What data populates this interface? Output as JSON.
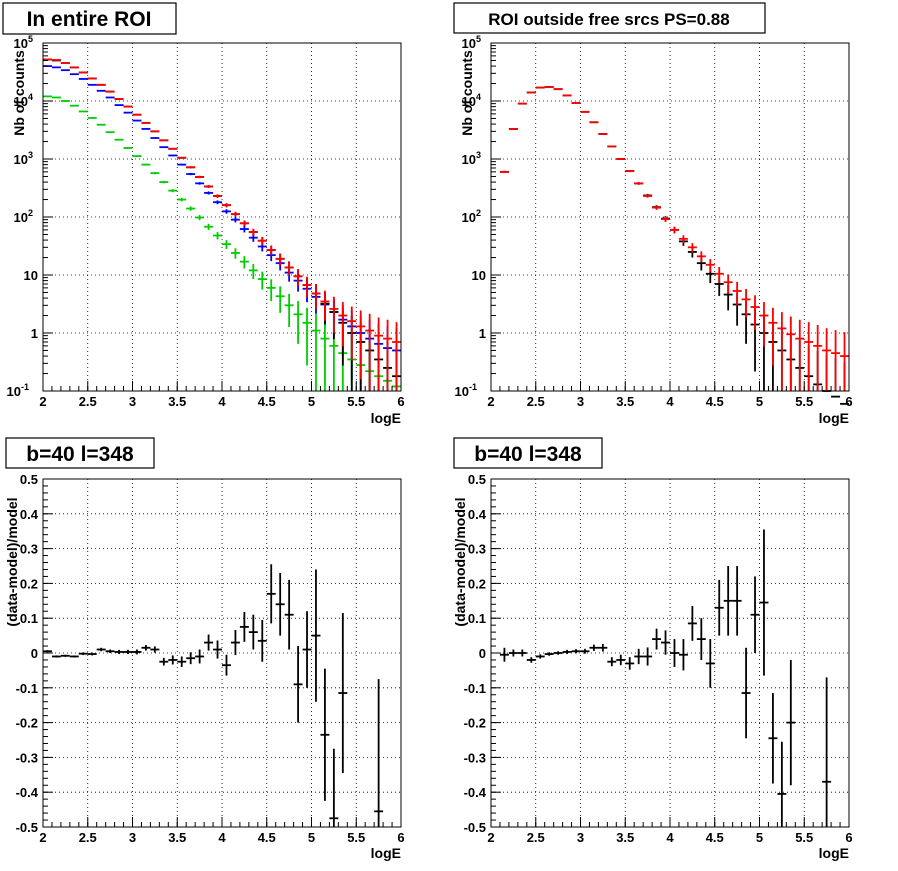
{
  "colors": {
    "data": "#000000",
    "model_total": "#ff0000",
    "model_blue": "#0000ff",
    "model_green": "#00cc00",
    "grid": "#000000",
    "frame": "#000000"
  },
  "chart_data": [
    {
      "type": "scatter",
      "title": "In entire ROI",
      "xlabel": "logE",
      "ylabel": "Nb of counts",
      "xlim": [
        2,
        6
      ],
      "ylim": [
        0.1,
        100000
      ],
      "yscale": "log",
      "grid": true,
      "x_ticks": [
        "2",
        "2.5",
        "3",
        "3.5",
        "4",
        "4.5",
        "5",
        "5.5",
        "6"
      ],
      "y_ticks": [
        "10^-1",
        "1",
        "10",
        "10^2",
        "10^3",
        "10^4",
        "10^5"
      ],
      "bin_width": 0.1,
      "series": [
        {
          "color": "#0000ff",
          "x": [
            2.05,
            2.15,
            2.25,
            2.35,
            2.45,
            2.55,
            2.65,
            2.75,
            2.85,
            2.95,
            3.05,
            3.15,
            3.25,
            3.35,
            3.45,
            3.55,
            3.65,
            3.75,
            3.85,
            3.95,
            4.05,
            4.15,
            4.25,
            4.35,
            4.45,
            4.55,
            4.65,
            4.75,
            4.85,
            4.95,
            5.05,
            5.15,
            5.25,
            5.35,
            5.45,
            5.55,
            5.65,
            5.75,
            5.85,
            5.95
          ],
          "y": [
            40000,
            38000,
            34000,
            29000,
            24000,
            19000,
            15000,
            11500,
            8500,
            6300,
            4600,
            3300,
            2300,
            1600,
            1150,
            800,
            550,
            380,
            260,
            180,
            125,
            90,
            62,
            44,
            31,
            22,
            16,
            11,
            8,
            5.8,
            4.2,
            3.1,
            2.3,
            1.7,
            1.3,
            1.0,
            0.8,
            0.65,
            0.55,
            0.5
          ]
        },
        {
          "color": "#00cc00",
          "x": [
            2.05,
            2.15,
            2.25,
            2.35,
            2.45,
            2.55,
            2.65,
            2.75,
            2.85,
            2.95,
            3.05,
            3.15,
            3.25,
            3.35,
            3.45,
            3.55,
            3.65,
            3.75,
            3.85,
            3.95,
            4.05,
            4.15,
            4.25,
            4.35,
            4.45,
            4.55,
            4.65,
            4.75,
            4.85,
            4.95,
            5.05,
            5.15,
            5.25,
            5.35,
            5.45,
            5.55,
            5.65,
            5.75,
            5.85,
            5.95
          ],
          "y": [
            12000,
            11500,
            10000,
            8300,
            6600,
            5100,
            3900,
            2900,
            2150,
            1550,
            1120,
            800,
            570,
            400,
            285,
            200,
            140,
            98,
            68,
            48,
            34,
            24,
            17,
            12,
            8.5,
            6,
            4.3,
            3.0,
            2.1,
            1.5,
            1.1,
            0.8,
            0.6,
            0.45,
            0.35,
            0.28,
            0.22,
            0.18,
            0.15,
            0.12
          ]
        },
        {
          "color": "#000000",
          "x": [
            2.05,
            2.15,
            2.25,
            2.35,
            2.45,
            2.55,
            2.65,
            2.75,
            2.85,
            2.95,
            3.05,
            3.15,
            3.25,
            3.35,
            3.45,
            3.55,
            3.65,
            3.75,
            3.85,
            3.95,
            4.05,
            4.15,
            4.25,
            4.35,
            4.45,
            4.55,
            4.65,
            4.75,
            4.85,
            4.95,
            5.05,
            5.15,
            5.25,
            5.35,
            5.45,
            5.55,
            5.65,
            5.75,
            5.85,
            5.95
          ],
          "y": [
            52000,
            50000,
            45000,
            38000,
            31000,
            24500,
            19000,
            14500,
            10800,
            8000,
            5800,
            4200,
            3000,
            2100,
            1500,
            1050,
            720,
            490,
            335,
            230,
            160,
            112,
            78,
            55,
            39,
            27,
            19,
            13.5,
            9.5,
            6.7,
            4.8,
            3.2,
            2.3,
            1.5,
            1.0,
            0.7,
            0.5,
            0.35,
            0.25,
            0.18
          ]
        },
        {
          "color": "#ff0000",
          "x": [
            2.05,
            2.15,
            2.25,
            2.35,
            2.45,
            2.55,
            2.65,
            2.75,
            2.85,
            2.95,
            3.05,
            3.15,
            3.25,
            3.35,
            3.45,
            3.55,
            3.65,
            3.75,
            3.85,
            3.95,
            4.05,
            4.15,
            4.25,
            4.35,
            4.45,
            4.55,
            4.65,
            4.75,
            4.85,
            4.95,
            5.05,
            5.15,
            5.25,
            5.35,
            5.45,
            5.55,
            5.65,
            5.75,
            5.85,
            5.95
          ],
          "y": [
            52000,
            51000,
            45000,
            38000,
            31000,
            24500,
            19000,
            14500,
            10800,
            8000,
            5800,
            4200,
            3000,
            2100,
            1500,
            1050,
            720,
            490,
            335,
            230,
            160,
            112,
            78,
            55,
            39,
            27,
            19,
            13.5,
            9.5,
            6.7,
            4.8,
            3.5,
            2.6,
            2.0,
            1.6,
            1.3,
            1.1,
            0.9,
            0.8,
            0.7
          ]
        }
      ]
    },
    {
      "type": "scatter",
      "title": "ROI outside free srcs PS=0.88",
      "xlabel": "logE",
      "ylabel": "Nb of counts",
      "xlim": [
        2,
        6
      ],
      "ylim": [
        0.1,
        100000
      ],
      "yscale": "log",
      "grid": true,
      "x_ticks": [
        "2",
        "2.5",
        "3",
        "3.5",
        "4",
        "4.5",
        "5",
        "5.5",
        "6"
      ],
      "y_ticks": [
        "10^-1",
        "1",
        "10",
        "10^2",
        "10^3",
        "10^4",
        "10^5"
      ],
      "bin_width": 0.1,
      "series": [
        {
          "color": "#000000",
          "x": [
            2.15,
            2.25,
            2.35,
            2.45,
            2.55,
            2.65,
            2.75,
            2.85,
            2.95,
            3.05,
            3.15,
            3.25,
            3.35,
            3.45,
            3.55,
            3.65,
            3.75,
            3.85,
            3.95,
            4.05,
            4.15,
            4.25,
            4.35,
            4.45,
            4.55,
            4.65,
            4.75,
            4.85,
            4.95,
            5.05,
            5.15,
            5.25,
            5.35,
            5.45,
            5.55,
            5.65,
            5.75,
            5.85,
            5.95
          ],
          "y": [
            600,
            3300,
            9000,
            14000,
            17000,
            17500,
            16000,
            12500,
            9200,
            6500,
            4300,
            2700,
            1650,
            1000,
            620,
            380,
            235,
            148,
            94,
            60,
            38,
            25,
            16,
            10.5,
            7,
            4.6,
            3.1,
            2.1,
            1.4,
            1.0,
            0.7,
            0.5,
            0.35,
            0.25,
            0.18,
            0.13,
            0.1,
            0.08,
            0.06
          ]
        },
        {
          "color": "#ff0000",
          "x": [
            2.15,
            2.25,
            2.35,
            2.45,
            2.55,
            2.65,
            2.75,
            2.85,
            2.95,
            3.05,
            3.15,
            3.25,
            3.35,
            3.45,
            3.55,
            3.65,
            3.75,
            3.85,
            3.95,
            4.05,
            4.15,
            4.25,
            4.35,
            4.45,
            4.55,
            4.65,
            4.75,
            4.85,
            4.95,
            5.05,
            5.15,
            5.25,
            5.35,
            5.45,
            5.55,
            5.65,
            5.75,
            5.85,
            5.95
          ],
          "y": [
            600,
            3300,
            9000,
            14000,
            17000,
            17500,
            16000,
            12500,
            9200,
            6500,
            4300,
            2700,
            1650,
            1000,
            620,
            380,
            230,
            145,
            92,
            60,
            42,
            30,
            21,
            15,
            10.5,
            7.5,
            5.3,
            3.8,
            2.8,
            2.0,
            1.5,
            1.2,
            0.95,
            0.8,
            0.7,
            0.6,
            0.5,
            0.45,
            0.4
          ]
        }
      ]
    },
    {
      "type": "scatter",
      "title": "b=40 l=348",
      "xlabel": "logE",
      "ylabel": "(data-model)/model",
      "xlim": [
        2,
        6
      ],
      "ylim": [
        -0.5,
        0.5
      ],
      "grid": true,
      "x_ticks": [
        "2",
        "2.5",
        "3",
        "3.5",
        "4",
        "4.5",
        "5",
        "5.5",
        "6"
      ],
      "y_ticks": [
        "-0.5",
        "-0.4",
        "-0.3",
        "-0.2",
        "-0.1",
        "0",
        "0.1",
        "0.2",
        "0.3",
        "0.4",
        "0.5"
      ],
      "bin_width": 0.1,
      "series": [
        {
          "color": "#000000",
          "x": [
            2.05,
            2.15,
            2.25,
            2.35,
            2.45,
            2.55,
            2.65,
            2.75,
            2.85,
            2.95,
            3.05,
            3.15,
            3.25,
            3.35,
            3.45,
            3.55,
            3.65,
            3.75,
            3.85,
            3.95,
            4.05,
            4.15,
            4.25,
            4.35,
            4.45,
            4.55,
            4.65,
            4.75,
            4.85,
            4.95,
            5.05,
            5.15,
            5.25,
            5.35,
            5.75
          ],
          "y": [
            0.005,
            -0.01,
            -0.008,
            -0.01,
            -0.002,
            -0.003,
            0.01,
            0.005,
            0.003,
            0.003,
            0.003,
            0.015,
            0.01,
            -0.025,
            -0.02,
            -0.025,
            -0.015,
            -0.01,
            0.03,
            0.01,
            -0.035,
            0.03,
            0.075,
            0.06,
            0.035,
            0.17,
            0.14,
            0.11,
            -0.09,
            0.01,
            0.05,
            -0.235,
            -0.475,
            -0.115,
            -0.455
          ],
          "yerr": [
            0.003,
            0.003,
            0.003,
            0.003,
            0.004,
            0.004,
            0.005,
            0.005,
            0.006,
            0.006,
            0.007,
            0.008,
            0.009,
            0.011,
            0.013,
            0.015,
            0.017,
            0.02,
            0.023,
            0.026,
            0.03,
            0.036,
            0.043,
            0.05,
            0.06,
            0.085,
            0.09,
            0.1,
            0.11,
            0.11,
            0.19,
            0.19,
            0.2,
            0.23,
            0.38
          ]
        }
      ]
    },
    {
      "type": "scatter",
      "title": "b=40 l=348",
      "xlabel": "logE",
      "ylabel": "(data-model)/model",
      "xlim": [
        2,
        6
      ],
      "ylim": [
        -0.5,
        0.5
      ],
      "grid": true,
      "x_ticks": [
        "2",
        "2.5",
        "3",
        "3.5",
        "4",
        "4.5",
        "5",
        "5.5",
        "6"
      ],
      "y_ticks": [
        "-0.5",
        "-0.4",
        "-0.3",
        "-0.2",
        "-0.1",
        "0",
        "0.1",
        "0.2",
        "0.3",
        "0.4",
        "0.5"
      ],
      "bin_width": 0.1,
      "series": [
        {
          "color": "#000000",
          "x": [
            2.15,
            2.25,
            2.35,
            2.45,
            2.55,
            2.65,
            2.75,
            2.85,
            2.95,
            3.05,
            3.15,
            3.25,
            3.35,
            3.45,
            3.55,
            3.65,
            3.75,
            3.85,
            3.95,
            4.05,
            4.15,
            4.25,
            4.35,
            4.45,
            4.55,
            4.65,
            4.75,
            4.85,
            4.95,
            5.05,
            5.15,
            5.25,
            5.35,
            5.75
          ],
          "y": [
            -0.005,
            0.0,
            0.0,
            -0.02,
            -0.01,
            -0.003,
            0.0,
            0.003,
            0.005,
            0.005,
            0.015,
            0.015,
            -0.025,
            -0.02,
            -0.03,
            -0.01,
            -0.01,
            0.04,
            0.03,
            0.0,
            -0.005,
            0.085,
            0.04,
            -0.03,
            0.13,
            0.15,
            0.15,
            -0.115,
            0.11,
            0.145,
            -0.245,
            -0.405,
            -0.2,
            -0.37
          ],
          "yerr": [
            0.02,
            0.01,
            0.01,
            0.008,
            0.006,
            0.005,
            0.005,
            0.006,
            0.006,
            0.007,
            0.009,
            0.011,
            0.013,
            0.015,
            0.018,
            0.022,
            0.026,
            0.03,
            0.035,
            0.04,
            0.045,
            0.05,
            0.06,
            0.07,
            0.08,
            0.1,
            0.1,
            0.13,
            0.11,
            0.21,
            0.13,
            0.15,
            0.18,
            0.3
          ]
        }
      ]
    }
  ]
}
